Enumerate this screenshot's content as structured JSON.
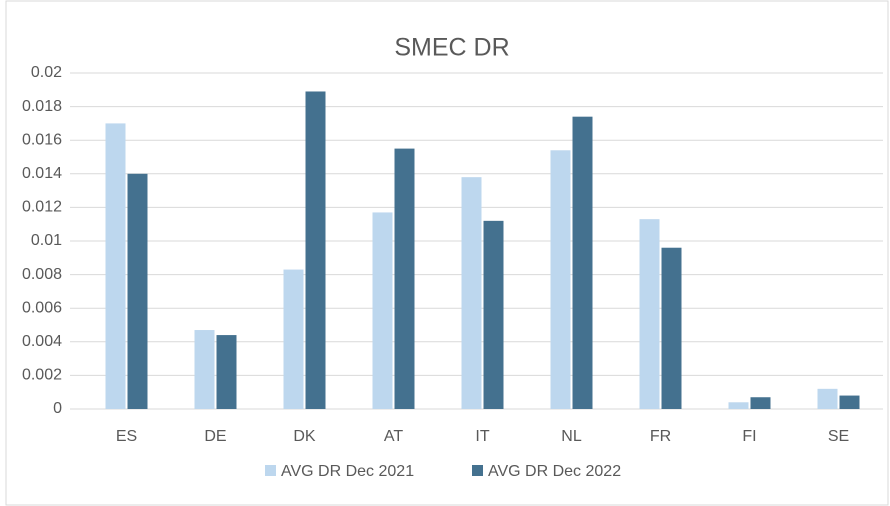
{
  "chart_data": {
    "type": "bar",
    "title": "SMEC DR",
    "categories": [
      "ES",
      "DE",
      "DK",
      "AT",
      "IT",
      "NL",
      "FR",
      "FI",
      "SE"
    ],
    "series": [
      {
        "name": "AVG DR Dec 2021",
        "color": "#bdd7ee",
        "values": [
          0.017,
          0.0047,
          0.0083,
          0.0117,
          0.0138,
          0.0154,
          0.0113,
          0.0004,
          0.0012
        ]
      },
      {
        "name": "AVG DR Dec 2022",
        "color": "#44718f",
        "values": [
          0.014,
          0.0044,
          0.0189,
          0.0155,
          0.0112,
          0.0174,
          0.0096,
          0.0007,
          0.0008
        ]
      }
    ],
    "ylim": [
      0,
      0.02
    ],
    "yticks": [
      0,
      0.002,
      0.004,
      0.006,
      0.008,
      0.01,
      0.012,
      0.014,
      0.016,
      0.018,
      0.02
    ],
    "grid": true,
    "legend": "bottom"
  }
}
